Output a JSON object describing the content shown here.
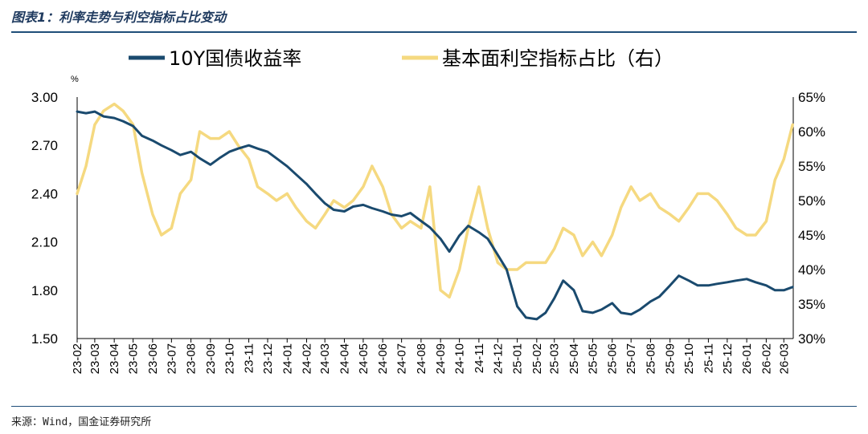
{
  "title": "图表1：利率走势与利空指标占比变动",
  "source": "来源：Wind，国金证券研究所",
  "chart_data": {
    "type": "line",
    "y_left_unit": "%",
    "y_left_range": [
      1.5,
      3.0
    ],
    "y_left_ticks": [
      "3.00",
      "2.70",
      "2.40",
      "2.10",
      "1.80",
      "1.50"
    ],
    "y_right_range": [
      30,
      65
    ],
    "y_right_ticks": [
      "65%",
      "60%",
      "55%",
      "50%",
      "45%",
      "40%",
      "35%",
      "30%"
    ],
    "x_ticks": [
      "23-02",
      "23-03",
      "23-04",
      "23-05",
      "23-06",
      "23-07",
      "23-08",
      "23-09",
      "23-10",
      "23-11",
      "23-12",
      "24-01",
      "24-02",
      "24-03",
      "24-04",
      "24-05",
      "24-06",
      "24-07",
      "24-08",
      "24-09",
      "24-10",
      "24-11",
      "24-12",
      "25-01",
      "25-02",
      "25-03",
      "25-04",
      "25-05",
      "25-06",
      "25-07",
      "25-08",
      "25-09",
      "25-10",
      "25-11",
      "25-12",
      "26-01",
      "26-02",
      "26-03"
    ],
    "legend_position": "top",
    "series": [
      {
        "name": "10Y国债收益率",
        "axis": "left",
        "color": "#1a4a6e",
        "x": [
          "23-02-01",
          "23-02-15",
          "23-03-01",
          "23-03-15",
          "23-04-01",
          "23-04-15",
          "23-05-01",
          "23-05-15",
          "23-06-01",
          "23-06-15",
          "23-07-01",
          "23-07-15",
          "23-08-01",
          "23-08-15",
          "23-09-01",
          "23-09-15",
          "23-10-01",
          "23-10-15",
          "23-11-01",
          "23-11-15",
          "23-12-01",
          "23-12-15",
          "24-01-01",
          "24-01-15",
          "24-02-01",
          "24-02-15",
          "24-03-01",
          "24-03-15",
          "24-04-01",
          "24-04-15",
          "24-05-01",
          "24-05-15",
          "24-06-01",
          "24-06-15",
          "24-07-01",
          "24-07-15",
          "24-08-01",
          "24-08-15",
          "24-09-01",
          "24-09-15",
          "24-10-01",
          "24-10-15",
          "24-11-01",
          "24-11-15",
          "24-12-01",
          "24-12-15",
          "25-01-01",
          "25-01-15",
          "25-02-01",
          "25-02-15",
          "25-03-01",
          "25-03-15",
          "25-04-01",
          "25-04-15",
          "25-05-01",
          "25-05-15",
          "25-06-01",
          "25-06-15",
          "25-07-01",
          "25-07-15",
          "25-08-01",
          "25-08-15",
          "25-09-01",
          "25-09-15",
          "25-10-01",
          "25-10-15",
          "25-11-01",
          "25-11-15",
          "25-12-01",
          "25-12-15",
          "26-01-01",
          "26-01-15",
          "26-02-01",
          "26-02-15",
          "26-03-01",
          "26-03-15"
        ],
        "values": [
          2.91,
          2.9,
          2.91,
          2.88,
          2.87,
          2.85,
          2.82,
          2.76,
          2.73,
          2.7,
          2.67,
          2.64,
          2.66,
          2.62,
          2.58,
          2.62,
          2.66,
          2.68,
          2.7,
          2.68,
          2.66,
          2.62,
          2.57,
          2.52,
          2.46,
          2.4,
          2.34,
          2.3,
          2.29,
          2.32,
          2.33,
          2.31,
          2.29,
          2.27,
          2.26,
          2.28,
          2.23,
          2.19,
          2.12,
          2.04,
          2.14,
          2.2,
          2.16,
          2.12,
          2.02,
          1.93,
          1.7,
          1.63,
          1.62,
          1.66,
          1.75,
          1.86,
          1.8,
          1.67,
          1.66,
          1.68,
          1.72,
          1.66,
          1.65,
          1.68,
          1.73,
          1.76,
          1.83,
          1.89,
          1.86,
          1.83,
          1.83,
          1.84,
          1.85,
          1.86,
          1.87,
          1.85,
          1.83,
          1.8,
          1.8,
          1.82
        ]
      },
      {
        "name": "基本面利空指标占比（右）",
        "axis": "right",
        "color": "#f5d980",
        "x": [
          "23-02-01",
          "23-02-15",
          "23-03-01",
          "23-03-15",
          "23-04-01",
          "23-04-15",
          "23-05-01",
          "23-05-15",
          "23-06-01",
          "23-06-15",
          "23-07-01",
          "23-07-15",
          "23-08-01",
          "23-08-15",
          "23-09-01",
          "23-09-15",
          "23-10-01",
          "23-10-15",
          "23-11-01",
          "23-11-15",
          "23-12-01",
          "23-12-15",
          "24-01-01",
          "24-01-15",
          "24-02-01",
          "24-02-15",
          "24-03-01",
          "24-03-15",
          "24-04-01",
          "24-04-15",
          "24-05-01",
          "24-05-15",
          "24-06-01",
          "24-06-15",
          "24-07-01",
          "24-07-15",
          "24-08-01",
          "24-08-15",
          "24-09-01",
          "24-09-15",
          "24-10-01",
          "24-10-15",
          "24-11-01",
          "24-11-15",
          "24-12-01",
          "24-12-15",
          "25-01-01",
          "25-01-15",
          "25-02-01",
          "25-02-15",
          "25-03-01",
          "25-03-15",
          "25-04-01",
          "25-04-15",
          "25-05-01",
          "25-05-15",
          "25-06-01",
          "25-06-15",
          "25-07-01",
          "25-07-15",
          "25-08-01",
          "25-08-15",
          "25-09-01",
          "25-09-15",
          "25-10-01",
          "25-10-15",
          "25-11-01",
          "25-11-15",
          "25-12-01",
          "25-12-15",
          "26-01-01",
          "26-01-15",
          "26-02-01",
          "26-02-15",
          "26-03-01",
          "26-03-15"
        ],
        "values": [
          51,
          55,
          61,
          63,
          64,
          63,
          61,
          54,
          48,
          45,
          46,
          51,
          53,
          60,
          59,
          59,
          60,
          58,
          56,
          52,
          51,
          50,
          51,
          49,
          47,
          46,
          48,
          50,
          49,
          50,
          52,
          55,
          52,
          48,
          46,
          47,
          46,
          52,
          37,
          36,
          40,
          46,
          52,
          46,
          41,
          40,
          40,
          41,
          41,
          41,
          43,
          46,
          45,
          42,
          44,
          42,
          45,
          49,
          52,
          50,
          51,
          49,
          48,
          47,
          49,
          51,
          51,
          50,
          48,
          46,
          45,
          45,
          47,
          53,
          56,
          61
        ]
      }
    ]
  }
}
